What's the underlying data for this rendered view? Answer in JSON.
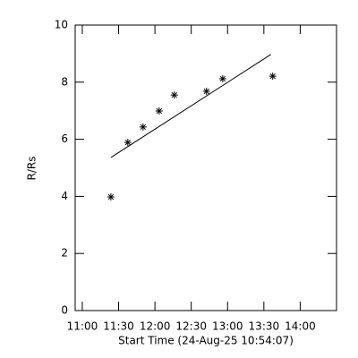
{
  "chart_data": {
    "type": "scatter",
    "xlabel": "Start Time (24-Aug-25 10:54:07)",
    "ylabel": "R/Rs",
    "x": [
      683.6,
      697.6,
      710.2,
      723.5,
      736.0,
      762.6,
      776.0,
      817.3
    ],
    "values": [
      3.98,
      5.89,
      6.43,
      6.99,
      7.55,
      7.68,
      8.12,
      8.21
    ],
    "marker": "asterisk",
    "color": "#000000",
    "fit": {
      "x": [
        683.6,
        815.8
      ],
      "values": [
        5.36,
        8.97
      ],
      "color": "#000000"
    },
    "xlim": [
      654.12,
      870
    ],
    "ylim": [
      0,
      10
    ],
    "xticks": [
      {
        "value": 660,
        "label": "11:00"
      },
      {
        "value": 690,
        "label": "11:30"
      },
      {
        "value": 720,
        "label": "12:00"
      },
      {
        "value": 750,
        "label": "12:30"
      },
      {
        "value": 780,
        "label": "13:00"
      },
      {
        "value": 810,
        "label": "13:30"
      },
      {
        "value": 840,
        "label": "14:00"
      }
    ],
    "yticks": [
      0,
      2,
      4,
      6,
      8,
      10
    ]
  }
}
